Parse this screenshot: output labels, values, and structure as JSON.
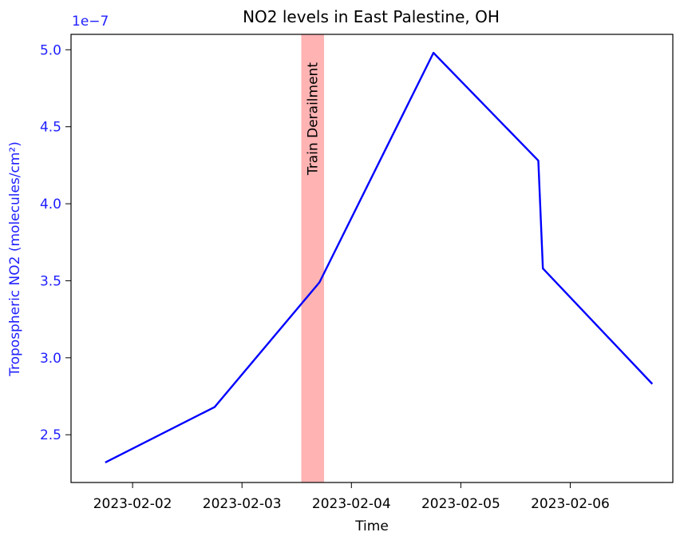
{
  "chart_data": {
    "type": "line",
    "title": "NO2 levels in East Palestine, OH",
    "xlabel": "Time",
    "ylabel": "Tropospheric NO2 (molecules/cm²)",
    "y_offset_label": "1e−7",
    "series_color": "#0000ff",
    "axis_label_color": "#1f1fff",
    "x_ticks": [
      "2023-02-02",
      "2023-02-03",
      "2023-02-04",
      "2023-02-05",
      "2023-02-06"
    ],
    "y_ticks": [
      "2.5",
      "3.0",
      "3.5",
      "4.0",
      "4.5",
      "5.0"
    ],
    "xlim": [
      "2023-02-01 10:30",
      "2023-02-06 22:30"
    ],
    "ylim": [
      2.19,
      5.1
    ],
    "series": [
      {
        "x": [
          "2023-02-01 18:00",
          "2023-02-02 18:00",
          "2023-02-03 17:00",
          "2023-02-04 18:00",
          "2023-02-05 17:00",
          "2023-02-05 18:00",
          "2023-02-06 18:00"
        ],
        "y": [
          2.32,
          2.68,
          3.49,
          4.98,
          4.28,
          3.58,
          2.83
        ]
      }
    ],
    "highlight": {
      "label": "Train Derailment",
      "x_start": "2023-02-03 13:00",
      "x_end": "2023-02-03 18:00",
      "color": "#ffb3b3"
    },
    "grid": false
  }
}
